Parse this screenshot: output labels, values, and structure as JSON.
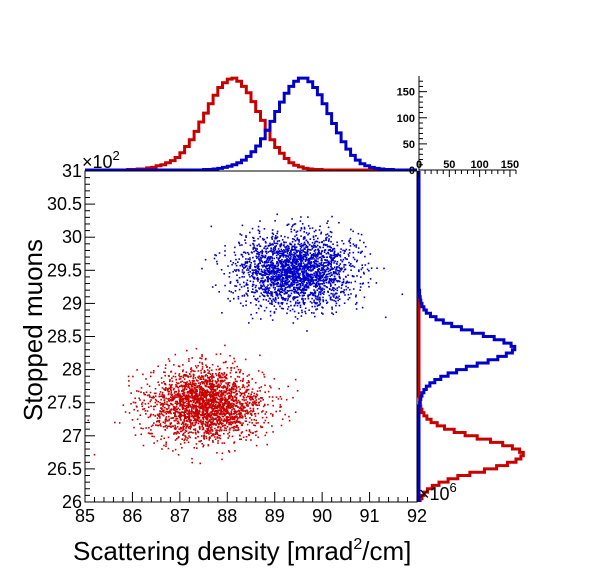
{
  "chart_data": [
    {
      "type": "scatter",
      "xlabel_text": "Scattering density [mrad",
      "xlabel_sup": "2",
      "xlabel_end": "/cm]",
      "ylabel": "Stopped muons",
      "xlim": [
        85,
        92
      ],
      "ylim": [
        2600,
        3100
      ],
      "x_ticks": [
        "85",
        "86",
        "87",
        "88",
        "89",
        "90",
        "91",
        "92"
      ],
      "y_ticks": [
        "26",
        "26.5",
        "27",
        "27.5",
        "28",
        "28.5",
        "29",
        "29.5",
        "30",
        "30.5",
        "31"
      ],
      "y_multiplier_base": "×10",
      "y_multiplier_exp": "2",
      "x_multiplier_base": "×10",
      "x_multiplier_exp": "6",
      "series": [
        {
          "color": "#c80000",
          "center": [
            87.55,
            2747
          ],
          "spread": [
            0.6,
            27
          ],
          "count": 2500
        },
        {
          "color": "#0000c8",
          "center": [
            89.45,
            2950
          ],
          "spread": [
            0.6,
            27
          ],
          "count": 2500
        }
      ]
    },
    {
      "type": "histogram",
      "position": "top",
      "ylim": [
        0,
        180
      ],
      "ticks": [
        "0",
        "50",
        "100",
        "150"
      ],
      "series": [
        {
          "color": "#c80000",
          "x_start": 85.0,
          "bin_width": 0.1,
          "counts": [
            0,
            0,
            0,
            0,
            0,
            0,
            0,
            0,
            0,
            1,
            1,
            2,
            2,
            4,
            5,
            8,
            10,
            14,
            18,
            24,
            33,
            45,
            58,
            74,
            92,
            109,
            127,
            143,
            158,
            167,
            174,
            176,
            170,
            160,
            148,
            131,
            112,
            95,
            76,
            58,
            43,
            32,
            22,
            14,
            9,
            6,
            3,
            2,
            1,
            1,
            0,
            0,
            0,
            0,
            0,
            0,
            0,
            0,
            0,
            0,
            0,
            0,
            0,
            0,
            0,
            0,
            0,
            0,
            0,
            0
          ]
        },
        {
          "color": "#0000c8",
          "x_start": 85.0,
          "bin_width": 0.1,
          "counts": [
            0,
            0,
            0,
            0,
            0,
            0,
            0,
            0,
            0,
            0,
            0,
            0,
            0,
            0,
            0,
            0,
            0,
            0,
            0,
            0,
            0,
            0,
            0,
            0,
            0,
            1,
            1,
            2,
            3,
            5,
            7,
            10,
            14,
            19,
            26,
            35,
            46,
            60,
            76,
            93,
            112,
            130,
            147,
            160,
            170,
            176,
            176,
            169,
            158,
            144,
            127,
            108,
            89,
            71,
            54,
            40,
            28,
            19,
            12,
            8,
            5,
            3,
            2,
            1,
            1,
            0,
            0,
            0,
            0,
            0
          ]
        }
      ]
    },
    {
      "type": "histogram",
      "position": "right",
      "xlim": [
        0,
        160
      ],
      "ticks": [
        "0",
        "50",
        "100",
        "150"
      ],
      "series": [
        {
          "color": "#c80000",
          "y_start": 2600,
          "bin_width": 5,
          "counts": [
            2,
            5,
            8,
            14,
            22,
            33,
            48,
            64,
            84,
            108,
            128,
            146,
            160,
            168,
            172,
            166,
            154,
            138,
            118,
            96,
            76,
            58,
            42,
            30,
            20,
            13,
            8,
            5,
            3,
            2,
            1,
            1,
            0,
            0,
            0,
            0,
            0,
            0,
            0,
            0,
            0,
            0,
            0,
            0,
            0,
            0,
            0,
            0,
            0,
            0,
            0,
            0,
            0,
            0,
            0,
            0,
            0,
            0,
            0,
            0,
            0,
            0,
            0,
            0,
            0,
            0,
            0,
            0,
            0,
            0,
            0,
            0,
            0,
            0,
            0,
            0,
            0,
            0,
            0,
            0,
            0,
            0,
            0,
            0,
            0,
            0,
            0,
            0,
            0,
            0,
            0,
            0,
            0,
            0,
            0,
            0,
            0,
            0,
            0,
            0
          ]
        },
        {
          "color": "#0000c8",
          "y_start": 2600,
          "bin_width": 5,
          "counts": [
            0,
            0,
            0,
            0,
            0,
            0,
            0,
            0,
            0,
            0,
            0,
            0,
            0,
            0,
            0,
            0,
            0,
            0,
            0,
            0,
            0,
            0,
            0,
            0,
            0,
            0,
            0,
            0,
            0,
            1,
            2,
            3,
            5,
            8,
            12,
            18,
            26,
            36,
            48,
            62,
            78,
            96,
            114,
            130,
            144,
            154,
            158,
            152,
            140,
            124,
            106,
            88,
            70,
            54,
            40,
            28,
            19,
            12,
            8,
            5,
            3,
            2,
            1,
            1,
            0,
            0,
            0,
            0,
            0,
            0,
            0,
            0,
            0,
            0,
            0,
            0,
            0,
            0,
            0,
            0,
            0,
            0,
            0,
            0,
            0,
            0,
            0,
            0,
            0,
            0,
            0,
            0,
            0,
            0,
            0,
            0,
            0,
            0,
            0,
            0
          ]
        }
      ]
    }
  ]
}
